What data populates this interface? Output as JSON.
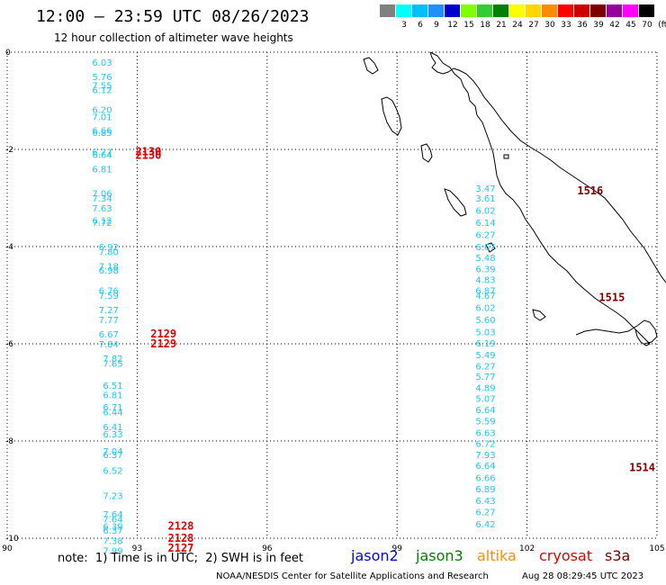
{
  "title": "12:00 – 23:59 UTC 08/26/2023",
  "subtitle": "12 hour collection of altimeter wave heights",
  "legend": {
    "unit": "(ft)",
    "bins": [
      {
        "label": "",
        "color": "#808080"
      },
      {
        "label": "3",
        "color": "#00ffff"
      },
      {
        "label": "6",
        "color": "#00bfff"
      },
      {
        "label": "9",
        "color": "#1e90ff"
      },
      {
        "label": "12",
        "color": "#0000cd"
      },
      {
        "label": "15",
        "color": "#7fff00"
      },
      {
        "label": "18",
        "color": "#32cd32"
      },
      {
        "label": "21",
        "color": "#008000"
      },
      {
        "label": "24",
        "color": "#ffff00"
      },
      {
        "label": "27",
        "color": "#ffd700"
      },
      {
        "label": "30",
        "color": "#ff8c00"
      },
      {
        "label": "33",
        "color": "#ff0000"
      },
      {
        "label": "36",
        "color": "#cc0000"
      },
      {
        "label": "39",
        "color": "#800000"
      },
      {
        "label": "42",
        "color": "#990099"
      },
      {
        "label": "45",
        "color": "#ff00ff"
      },
      {
        "label": "70",
        "color": "#000000"
      }
    ]
  },
  "axes": {
    "x_ticks": [
      "90",
      "93",
      "96",
      "99",
      "102",
      "105"
    ],
    "y_ticks": [
      "0",
      "-2",
      "-4",
      "-6",
      "-8",
      "-10"
    ]
  },
  "colors": {
    "swh": "#1ec8f0",
    "cryosat_time": "#e00000",
    "s3a_time": "#800000"
  },
  "tracks": [
    {
      "lon": 92.75,
      "points": [
        {
          "lat": -0.2,
          "v": "6.03"
        },
        {
          "lat": -0.5,
          "v": "5.76"
        },
        {
          "lat": -0.68,
          "v": "7.55"
        },
        {
          "lat": -0.77,
          "v": "6.12"
        },
        {
          "lat": -1.18,
          "v": "6.20"
        },
        {
          "lat": -1.32,
          "v": "7.01"
        },
        {
          "lat": -1.6,
          "v": "6.66"
        },
        {
          "lat": -1.65,
          "v": "6.85"
        },
        {
          "lat": -2.05,
          "v": "6.77"
        },
        {
          "lat": -2.1,
          "v": "6.64"
        },
        {
          "lat": -2.4,
          "v": "6.81"
        },
        {
          "lat": -2.9,
          "v": "7.06"
        },
        {
          "lat": -3.0,
          "v": "7.34"
        },
        {
          "lat": -3.2,
          "v": "7.63"
        },
        {
          "lat": -3.45,
          "v": "6.12"
        },
        {
          "lat": -3.5,
          "v": "7.72"
        }
      ]
    },
    {
      "lon": 92.9,
      "points": [
        {
          "lat": -4.0,
          "v": "6.92"
        },
        {
          "lat": -4.1,
          "v": "7.80"
        },
        {
          "lat": -4.4,
          "v": "7.18"
        },
        {
          "lat": -4.48,
          "v": "6.98"
        },
        {
          "lat": -4.9,
          "v": "6.76"
        },
        {
          "lat": -5.0,
          "v": "7.59"
        },
        {
          "lat": -5.3,
          "v": "7.27"
        },
        {
          "lat": -5.5,
          "v": "7.77"
        },
        {
          "lat": -5.8,
          "v": "6.67"
        },
        {
          "lat": -6.0,
          "v": "7.84"
        }
      ]
    },
    {
      "lon": 93.0,
      "points": [
        {
          "lat": -6.3,
          "v": "7.82"
        },
        {
          "lat": -6.4,
          "v": "7.65"
        },
        {
          "lat": -6.85,
          "v": "6.51"
        },
        {
          "lat": -7.05,
          "v": "6.81"
        },
        {
          "lat": -7.3,
          "v": "6.71"
        },
        {
          "lat": -7.4,
          "v": "6.44"
        },
        {
          "lat": -7.7,
          "v": "6.41"
        },
        {
          "lat": -7.85,
          "v": "6.33"
        },
        {
          "lat": -8.2,
          "v": "7.04"
        },
        {
          "lat": -8.28,
          "v": "6.37"
        },
        {
          "lat": -8.6,
          "v": "6.52"
        },
        {
          "lat": -9.12,
          "v": "7.23"
        },
        {
          "lat": -9.5,
          "v": "7.64"
        },
        {
          "lat": -9.6,
          "v": "7.64"
        },
        {
          "lat": -9.75,
          "v": "6.39"
        },
        {
          "lat": -9.83,
          "v": "6.37"
        },
        {
          "lat": -10.05,
          "v": "7.38"
        },
        {
          "lat": -10.25,
          "v": "7.99"
        }
      ]
    },
    {
      "lon": 101.6,
      "points": [
        {
          "lat": -2.8,
          "v": "3.47"
        },
        {
          "lat": -3.0,
          "v": "3.61"
        },
        {
          "lat": -3.25,
          "v": "6.02"
        },
        {
          "lat": -3.5,
          "v": "6.14"
        },
        {
          "lat": -3.75,
          "v": "6.27"
        },
        {
          "lat": -4.0,
          "v": "6.67"
        },
        {
          "lat": -4.22,
          "v": "5.48"
        },
        {
          "lat": -4.45,
          "v": "6.39"
        },
        {
          "lat": -4.68,
          "v": "4.83"
        },
        {
          "lat": -4.9,
          "v": "6.87"
        },
        {
          "lat": -5.0,
          "v": "4.67"
        },
        {
          "lat": -5.25,
          "v": "6.02"
        },
        {
          "lat": -5.5,
          "v": "5.60"
        },
        {
          "lat": -5.75,
          "v": "5.03"
        },
        {
          "lat": -5.98,
          "v": "6.19"
        },
        {
          "lat": -6.22,
          "v": "5.49"
        },
        {
          "lat": -6.45,
          "v": "6.27"
        },
        {
          "lat": -6.67,
          "v": "5.77"
        },
        {
          "lat": -6.9,
          "v": "4.89"
        },
        {
          "lat": -7.12,
          "v": "5.07"
        },
        {
          "lat": -7.35,
          "v": "6.64"
        },
        {
          "lat": -7.58,
          "v": "5.59"
        },
        {
          "lat": -7.82,
          "v": "6.63"
        },
        {
          "lat": -8.05,
          "v": "6.72"
        },
        {
          "lat": -8.28,
          "v": "7.93"
        },
        {
          "lat": -8.5,
          "v": "6.64"
        },
        {
          "lat": -8.75,
          "v": "6.66"
        },
        {
          "lat": -8.98,
          "v": "6.89"
        },
        {
          "lat": -9.22,
          "v": "6.43"
        },
        {
          "lat": -9.45,
          "v": "6.27"
        },
        {
          "lat": -9.7,
          "v": "6.42"
        }
      ]
    }
  ],
  "time_tags": [
    {
      "text": "2130",
      "lon": 93.0,
      "lat": -2.05,
      "series": "cryosat"
    },
    {
      "text": "2130",
      "lon": 93.0,
      "lat": -2.12,
      "series": "cryosat"
    },
    {
      "text": "2129",
      "lon": 93.35,
      "lat": -5.8,
      "series": "cryosat"
    },
    {
      "text": "2129",
      "lon": 93.35,
      "lat": -6.0,
      "series": "cryosat"
    },
    {
      "text": "2128",
      "lon": 93.75,
      "lat": -9.75,
      "series": "cryosat"
    },
    {
      "text": "2128",
      "lon": 93.75,
      "lat": -10.0,
      "series": "cryosat"
    },
    {
      "text": "2127",
      "lon": 93.75,
      "lat": -10.2,
      "series": "cryosat"
    },
    {
      "text": "1516",
      "lon": 103.2,
      "lat": -2.85,
      "series": "s3a"
    },
    {
      "text": "1515",
      "lon": 103.7,
      "lat": -5.05,
      "series": "s3a"
    },
    {
      "text": "1514",
      "lon": 104.4,
      "lat": -8.55,
      "series": "s3a"
    }
  ],
  "footer": {
    "note": "note:  1) Time is in UTC;  2) SWH is in feet",
    "missions": [
      {
        "name": "jason2",
        "color": "#0000ff"
      },
      {
        "name": "jason3",
        "color": "#008000"
      },
      {
        "name": "altika",
        "color": "#ff8c00"
      },
      {
        "name": "cryosat",
        "color": "#e00000"
      },
      {
        "name": "s3a",
        "color": "#800000"
      }
    ],
    "credit": "NOAA/NESDIS Center for Satellite Applications and Research",
    "timestamp": "Aug 28 08:29:45 UTC 2023"
  }
}
